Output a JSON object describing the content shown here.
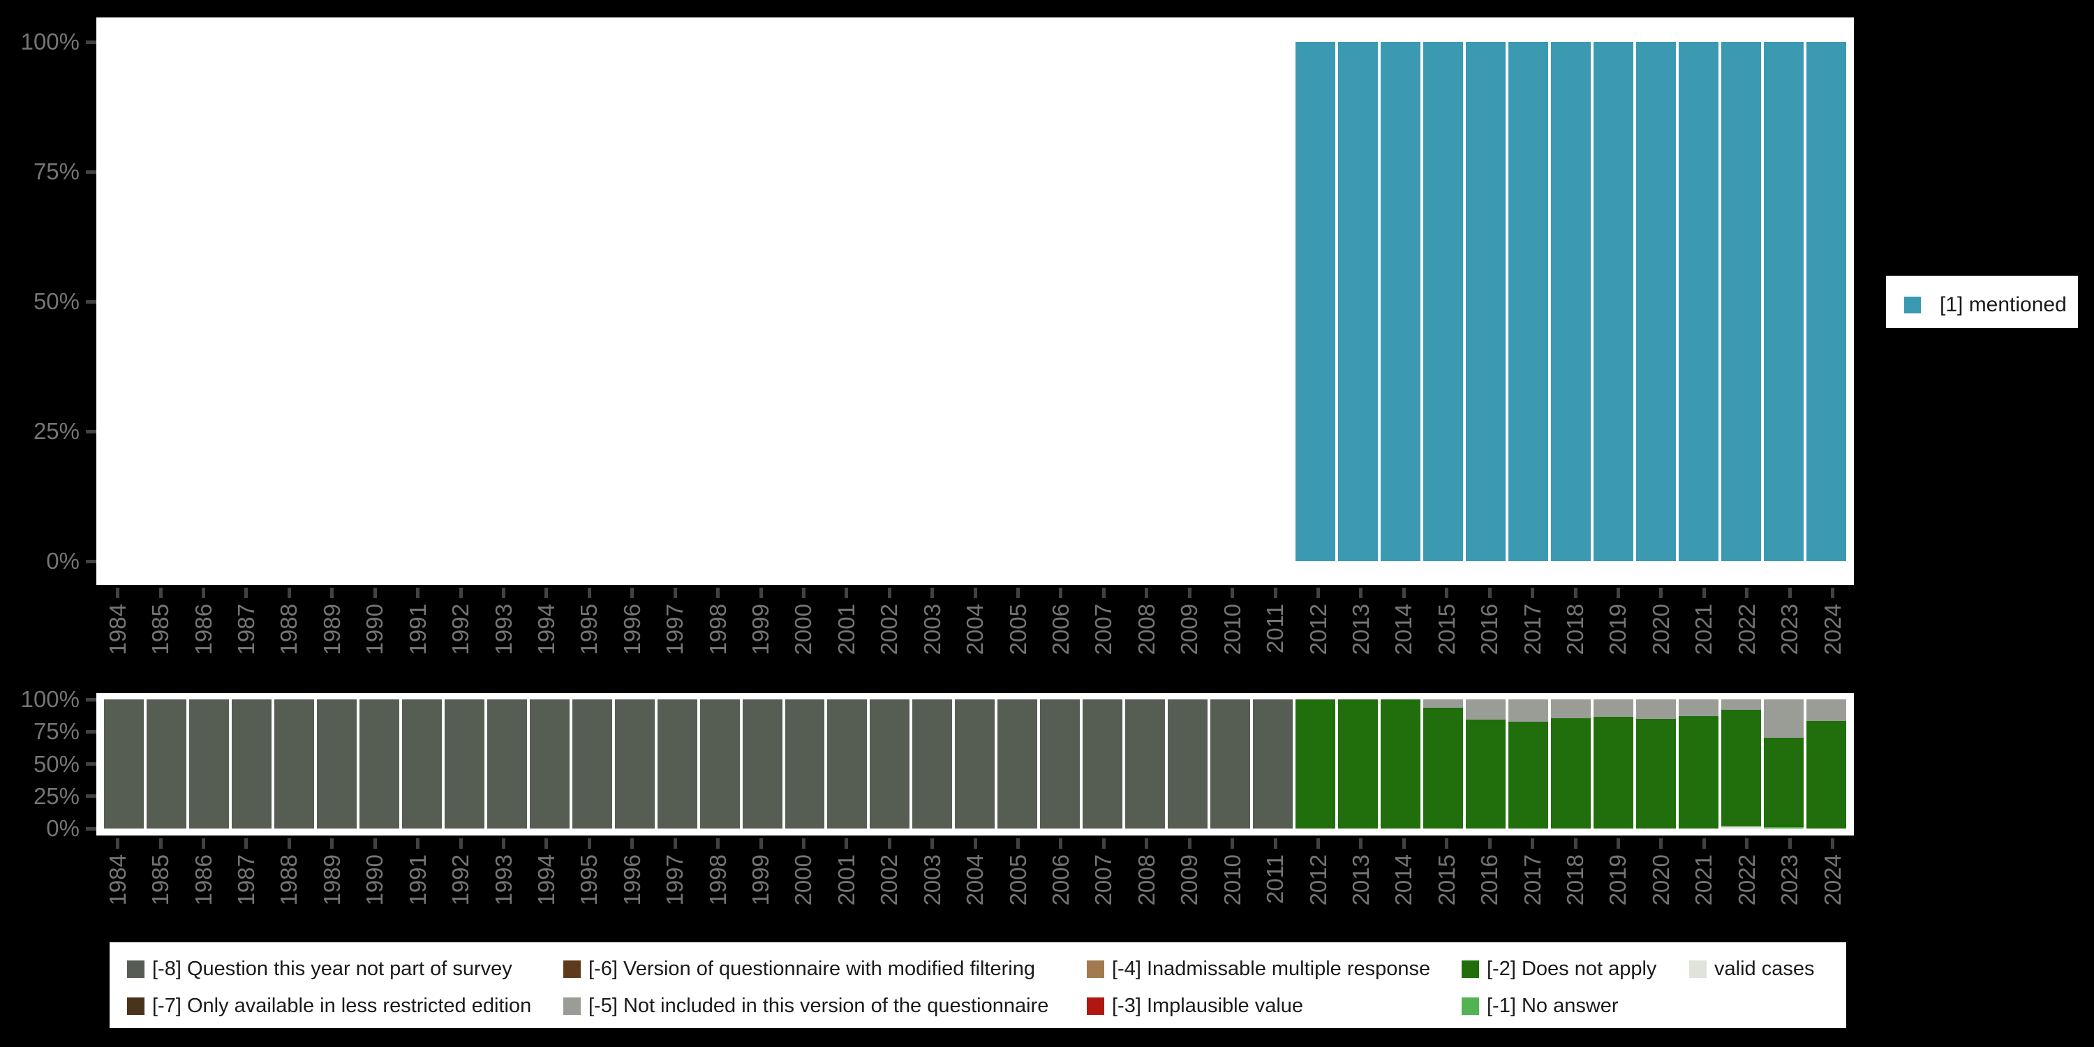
{
  "colors": {
    "background": "#000000",
    "plot_background": "#FFFFFF",
    "axis_text": "#757575",
    "tick_mark": "#424242",
    "legend_text": "#1A1A1A"
  },
  "chart_data": [
    {
      "name": "top",
      "type": "bar",
      "stacked": true,
      "title": "",
      "xlabel": "",
      "ylabel": "",
      "ylim": [
        0,
        100
      ],
      "grid": false,
      "legend_position": "right",
      "ytick_values": [
        0,
        25,
        50,
        75,
        100
      ],
      "ytick_labels": [
        "0%",
        "25%",
        "50%",
        "75%",
        "100%"
      ],
      "categories": [
        "1984",
        "1985",
        "1986",
        "1987",
        "1988",
        "1989",
        "1990",
        "1991",
        "1992",
        "1993",
        "1994",
        "1995",
        "1996",
        "1997",
        "1998",
        "1999",
        "2000",
        "2001",
        "2002",
        "2003",
        "2004",
        "2005",
        "2006",
        "2007",
        "2008",
        "2009",
        "2010",
        "2011",
        "2012",
        "2013",
        "2014",
        "2015",
        "2016",
        "2017",
        "2018",
        "2019",
        "2020",
        "2021",
        "2022",
        "2023",
        "2024"
      ],
      "series": [
        {
          "name": "[1] mentioned",
          "color": "#3B9AB2",
          "values": [
            0,
            0,
            0,
            0,
            0,
            0,
            0,
            0,
            0,
            0,
            0,
            0,
            0,
            0,
            0,
            0,
            0,
            0,
            0,
            0,
            0,
            0,
            0,
            0,
            0,
            0,
            0,
            0,
            100,
            100,
            100,
            100,
            100,
            100,
            100,
            100,
            100,
            100,
            100,
            100,
            100
          ]
        }
      ]
    },
    {
      "name": "bottom",
      "type": "bar",
      "stacked": true,
      "title": "",
      "xlabel": "",
      "ylabel": "",
      "ylim": [
        0,
        100
      ],
      "grid": false,
      "legend_position": "bottom",
      "ytick_values": [
        0,
        25,
        50,
        75,
        100
      ],
      "ytick_labels": [
        "0%",
        "25%",
        "50%",
        "75%",
        "100%"
      ],
      "categories": [
        "1984",
        "1985",
        "1986",
        "1987",
        "1988",
        "1989",
        "1990",
        "1991",
        "1992",
        "1993",
        "1994",
        "1995",
        "1996",
        "1997",
        "1998",
        "1999",
        "2000",
        "2001",
        "2002",
        "2003",
        "2004",
        "2005",
        "2006",
        "2007",
        "2008",
        "2009",
        "2010",
        "2011",
        "2012",
        "2013",
        "2014",
        "2015",
        "2016",
        "2017",
        "2018",
        "2019",
        "2020",
        "2021",
        "2022",
        "2023",
        "2024"
      ],
      "series": [
        {
          "name": "valid cases",
          "color": "#DFE3DC",
          "values": [
            0,
            0,
            0,
            0,
            0,
            0,
            0,
            0,
            0,
            0,
            0,
            0,
            0,
            0,
            0,
            0,
            0,
            0,
            0,
            0,
            0,
            0,
            0,
            0,
            0,
            0,
            0,
            0,
            0,
            0,
            0,
            0,
            0,
            0,
            0,
            0,
            0,
            0,
            1.5,
            0,
            0
          ]
        },
        {
          "name": "[-1] No answer",
          "color": "#53B353",
          "values": [
            0,
            0,
            0,
            0,
            0,
            0,
            0,
            0,
            0,
            0,
            0,
            0,
            0,
            0,
            0,
            0,
            0,
            0,
            0,
            0,
            0,
            0,
            0,
            0,
            0,
            0,
            0,
            0,
            0,
            0,
            0,
            0,
            0,
            0,
            0,
            0,
            0,
            0,
            0,
            1,
            0
          ]
        },
        {
          "name": "[-2] Does not apply",
          "color": "#216E0D",
          "values": [
            0,
            0,
            0,
            0,
            0,
            0,
            0,
            0,
            0,
            0,
            0,
            0,
            0,
            0,
            0,
            0,
            0,
            0,
            0,
            0,
            0,
            0,
            0,
            0,
            0,
            0,
            0,
            0,
            100,
            100,
            100,
            93.5,
            84.5,
            82.5,
            85.5,
            86.5,
            85,
            87,
            90.5,
            69.5,
            83.5
          ]
        },
        {
          "name": "[-3] Implausible value",
          "color": "#B01710",
          "values": [
            0,
            0,
            0,
            0,
            0,
            0,
            0,
            0,
            0,
            0,
            0,
            0,
            0,
            0,
            0,
            0,
            0,
            0,
            0,
            0,
            0,
            0,
            0,
            0,
            0,
            0,
            0,
            0,
            0,
            0,
            0,
            0,
            0,
            0,
            0,
            0,
            0,
            0,
            0,
            0,
            0
          ]
        },
        {
          "name": "[-4] Inadmissable multiple response",
          "color": "#A17A50",
          "values": [
            0,
            0,
            0,
            0,
            0,
            0,
            0,
            0,
            0,
            0,
            0,
            0,
            0,
            0,
            0,
            0,
            0,
            0,
            0,
            0,
            0,
            0,
            0,
            0,
            0,
            0,
            0,
            0,
            0,
            0,
            0,
            0,
            0,
            0,
            0,
            0,
            0,
            0,
            0,
            0,
            0
          ]
        },
        {
          "name": "[-5] Not included in this version of the questionnaire",
          "color": "#9A9D96",
          "values": [
            0,
            0,
            0,
            0,
            0,
            0,
            0,
            0,
            0,
            0,
            0,
            0,
            0,
            0,
            0,
            0,
            0,
            0,
            0,
            0,
            0,
            0,
            0,
            0,
            0,
            0,
            0,
            0,
            0,
            0,
            0,
            6.5,
            15.5,
            17.5,
            14.5,
            13.5,
            15,
            13,
            8,
            29.5,
            16.5
          ]
        },
        {
          "name": "[-6] Version of questionnaire with modified filtering",
          "color": "#5D3A1B",
          "values": [
            0,
            0,
            0,
            0,
            0,
            0,
            0,
            0,
            0,
            0,
            0,
            0,
            0,
            0,
            0,
            0,
            0,
            0,
            0,
            0,
            0,
            0,
            0,
            0,
            0,
            0,
            0,
            0,
            0,
            0,
            0,
            0,
            0,
            0,
            0,
            0,
            0,
            0,
            0,
            0,
            0
          ]
        },
        {
          "name": "[-7] Only available in less restricted edition",
          "color": "#4A331B",
          "values": [
            0,
            0,
            0,
            0,
            0,
            0,
            0,
            0,
            0,
            0,
            0,
            0,
            0,
            0,
            0,
            0,
            0,
            0,
            0,
            0,
            0,
            0,
            0,
            0,
            0,
            0,
            0,
            0,
            0,
            0,
            0,
            0,
            0,
            0,
            0,
            0,
            0,
            0,
            0,
            0,
            0
          ]
        },
        {
          "name": "[-8] Question this year not part of survey",
          "color": "#565E54",
          "values": [
            100,
            100,
            100,
            100,
            100,
            100,
            100,
            100,
            100,
            100,
            100,
            100,
            100,
            100,
            100,
            100,
            100,
            100,
            100,
            100,
            100,
            100,
            100,
            100,
            100,
            100,
            100,
            100,
            0,
            0,
            0,
            0,
            0,
            0,
            0,
            0,
            0,
            0,
            0,
            0,
            0
          ]
        }
      ]
    }
  ],
  "legend_right": {
    "items": [
      {
        "label": "[1] mentioned",
        "color": "#3B9AB2"
      }
    ]
  },
  "legend_bottom": {
    "items": [
      {
        "label": "[-8] Question this year not part of survey",
        "color": "#565E54"
      },
      {
        "label": "[-6] Version of questionnaire with modified filtering",
        "color": "#5D3A1B"
      },
      {
        "label": "[-4] Inadmissable multiple response",
        "color": "#A17A50"
      },
      {
        "label": "[-2] Does not apply",
        "color": "#216E0D"
      },
      {
        "label": "valid cases",
        "color": "#DFE3DC"
      },
      {
        "label": "[-7] Only available in less restricted edition",
        "color": "#4A331B"
      },
      {
        "label": "[-5] Not included in this version of the questionnaire",
        "color": "#9A9D96"
      },
      {
        "label": "[-3] Implausible value",
        "color": "#B01710"
      },
      {
        "label": "[-1] No answer",
        "color": "#53B353"
      }
    ]
  }
}
